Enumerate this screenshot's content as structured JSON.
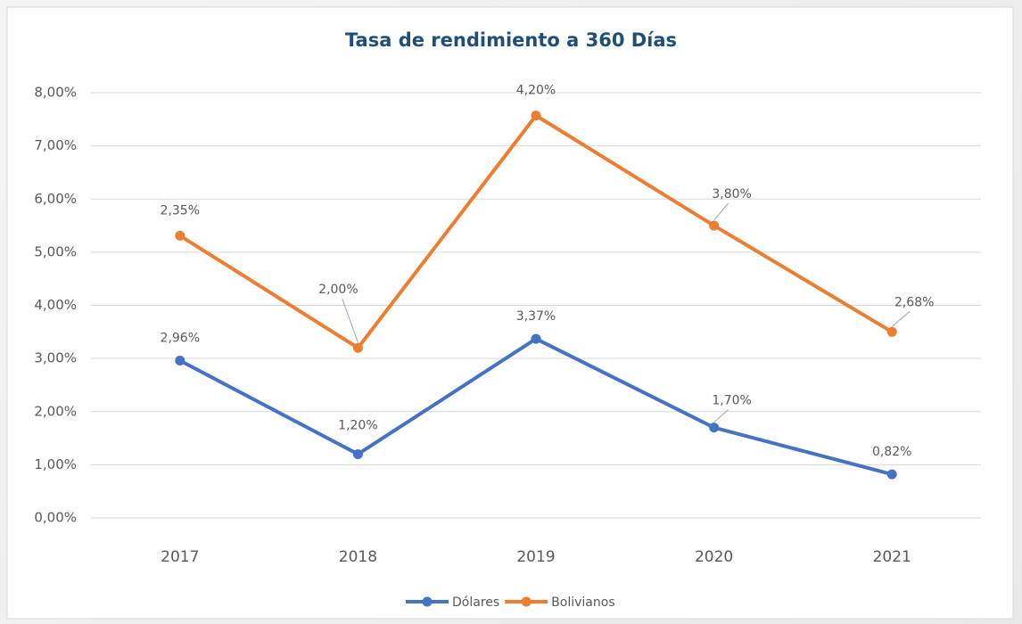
{
  "chart_data": {
    "type": "line",
    "stacked": true,
    "title": "Tasa de rendimiento a 360 Días",
    "categories": [
      "2017",
      "2018",
      "2019",
      "2020",
      "2021"
    ],
    "series": [
      {
        "name": "Dólares",
        "color": "#4472c4",
        "values": [
          2.96,
          1.2,
          3.37,
          1.7,
          0.82
        ],
        "value_labels": [
          "2,96%",
          "1,20%",
          "3,37%",
          "1,70%",
          "0,82%"
        ]
      },
      {
        "name": "Bolivianos",
        "color": "#ed7d31",
        "values": [
          2.35,
          2.0,
          4.2,
          3.8,
          2.68
        ],
        "value_labels": [
          "2,35%",
          "2,00%",
          "4,20%",
          "3,80%",
          "2,68%"
        ]
      }
    ],
    "ylim": [
      0,
      8
    ],
    "yticks": [
      {
        "value": 0,
        "label": "0,00%"
      },
      {
        "value": 1,
        "label": "1,00%"
      },
      {
        "value": 2,
        "label": "2,00%"
      },
      {
        "value": 3,
        "label": "3,00%"
      },
      {
        "value": 4,
        "label": "4,00%"
      },
      {
        "value": 5,
        "label": "5,00%"
      },
      {
        "value": 6,
        "label": "6,00%"
      },
      {
        "value": 7,
        "label": "7,00%"
      },
      {
        "value": 8,
        "label": "8,00%"
      }
    ],
    "grid": true,
    "legend": "bottom"
  }
}
